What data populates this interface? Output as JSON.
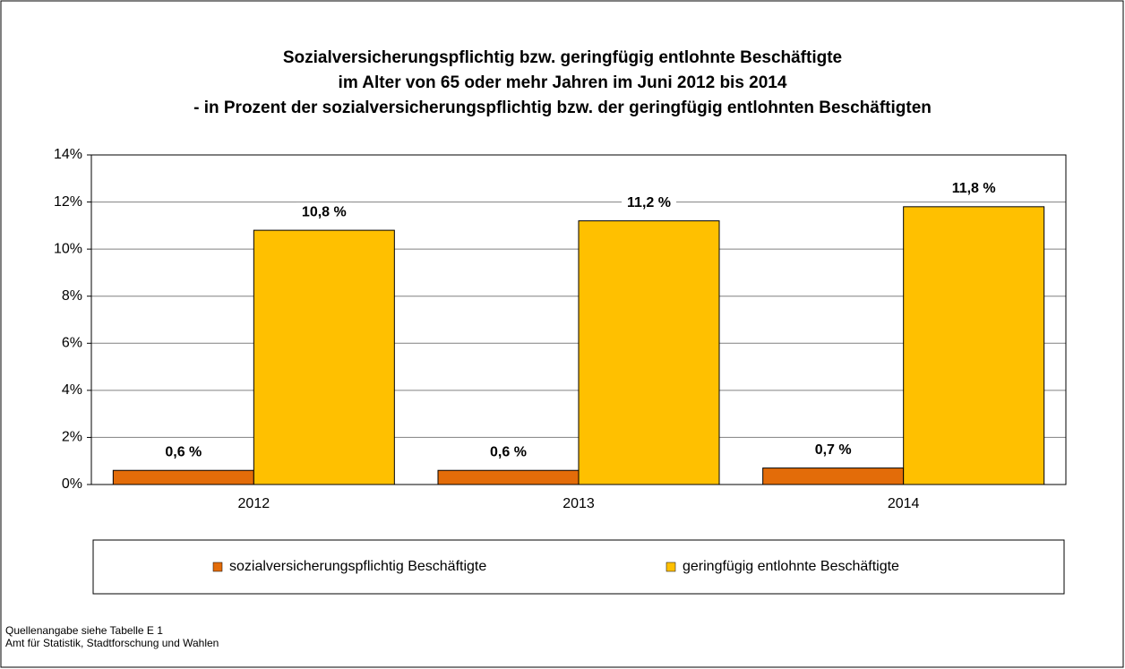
{
  "chart_data": {
    "type": "bar",
    "title": [
      "Sozialversicherungspflichtig bzw. geringfügig entlohnte Beschäftigte",
      "im Alter von 65 oder mehr Jahren im Juni 2012 bis 2014",
      "- in Prozent der sozialversicherungspflichtig bzw. der geringfügig entlohnten Beschäftigten"
    ],
    "categories": [
      "2012",
      "2013",
      "2014"
    ],
    "series": [
      {
        "name": "sozialversicherungspflichtig Beschäftigte",
        "color": "#E36C09",
        "values": [
          0.6,
          0.6,
          0.7
        ],
        "value_labels": [
          "0,6 %",
          "0,6 %",
          "0,7 %"
        ]
      },
      {
        "name": "geringfügig entlohnte Beschäftigte",
        "color": "#FFC000",
        "values": [
          10.8,
          11.2,
          11.8
        ],
        "value_labels": [
          "10,8 %",
          "11,2 %",
          "11,8 %"
        ]
      }
    ],
    "ylim": [
      0,
      14
    ],
    "yticks": [
      {
        "value": 0,
        "label": "0%"
      },
      {
        "value": 2,
        "label": "2%"
      },
      {
        "value": 4,
        "label": "4%"
      },
      {
        "value": 6,
        "label": "6%"
      },
      {
        "value": 8,
        "label": "8%"
      },
      {
        "value": 10,
        "label": "10%"
      },
      {
        "value": 12,
        "label": "12%"
      },
      {
        "value": 14,
        "label": "14%"
      }
    ],
    "grid": true,
    "legend": "bottom",
    "notes": [
      "Quellenangabe siehe Tabelle E 1",
      "Amt für Statistik, Stadtforschung und Wahlen"
    ]
  }
}
